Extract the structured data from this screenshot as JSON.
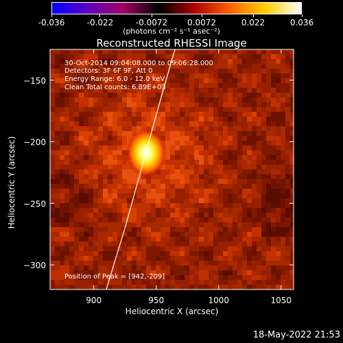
{
  "colorbar": {
    "ticks": [
      "-0.036",
      "-0.022",
      "-0.0072",
      "0.0072",
      "0.022",
      "0.036"
    ],
    "tick_values": [
      -0.036,
      -0.022,
      -0.0072,
      0.0072,
      0.022,
      0.036
    ],
    "range": [
      -0.036,
      0.036
    ],
    "unit_label": "(photons cm⁻² s⁻¹ asec⁻²)",
    "colormap": [
      "#0000ff",
      "#6000c0",
      "#a00060",
      "#000000",
      "#b00000",
      "#ff6000",
      "#ffd000",
      "#ffffff"
    ]
  },
  "chart_data": {
    "type": "heatmap",
    "title": "Reconstructed RHESSI Image",
    "xlabel": "Heliocentric X (arcsec)",
    "ylabel": "Heliocentric Y (arcsec)",
    "xlim": [
      865,
      1060
    ],
    "ylim": [
      -320,
      -125
    ],
    "xticks": [
      900,
      950,
      1000,
      1050
    ],
    "yticks": [
      -150,
      -200,
      -250,
      -300
    ],
    "peak": {
      "x": 942,
      "y": -209
    },
    "limb_curve": [
      [
        910,
        -320
      ],
      [
        925,
        -270
      ],
      [
        940,
        -215
      ],
      [
        955,
        -160
      ],
      [
        965,
        -125
      ]
    ],
    "colors": {
      "background": "#7a1400",
      "limb": "#ffffff",
      "axes": "#ffffff"
    }
  },
  "annotations": {
    "time_range": "30-Oct-2014 09:04:08.000 to 09:06:28.000",
    "detectors": "Detectors: 3F 6F 9F, Att 0",
    "energy": "Energy Range: 6.0 - 12.0 keV",
    "clean": "Clean     Total counts: 6.89E+03",
    "peak": "Position of Peak = [942,-209]"
  },
  "footer": {
    "date": "18-May-2022 21:53"
  }
}
